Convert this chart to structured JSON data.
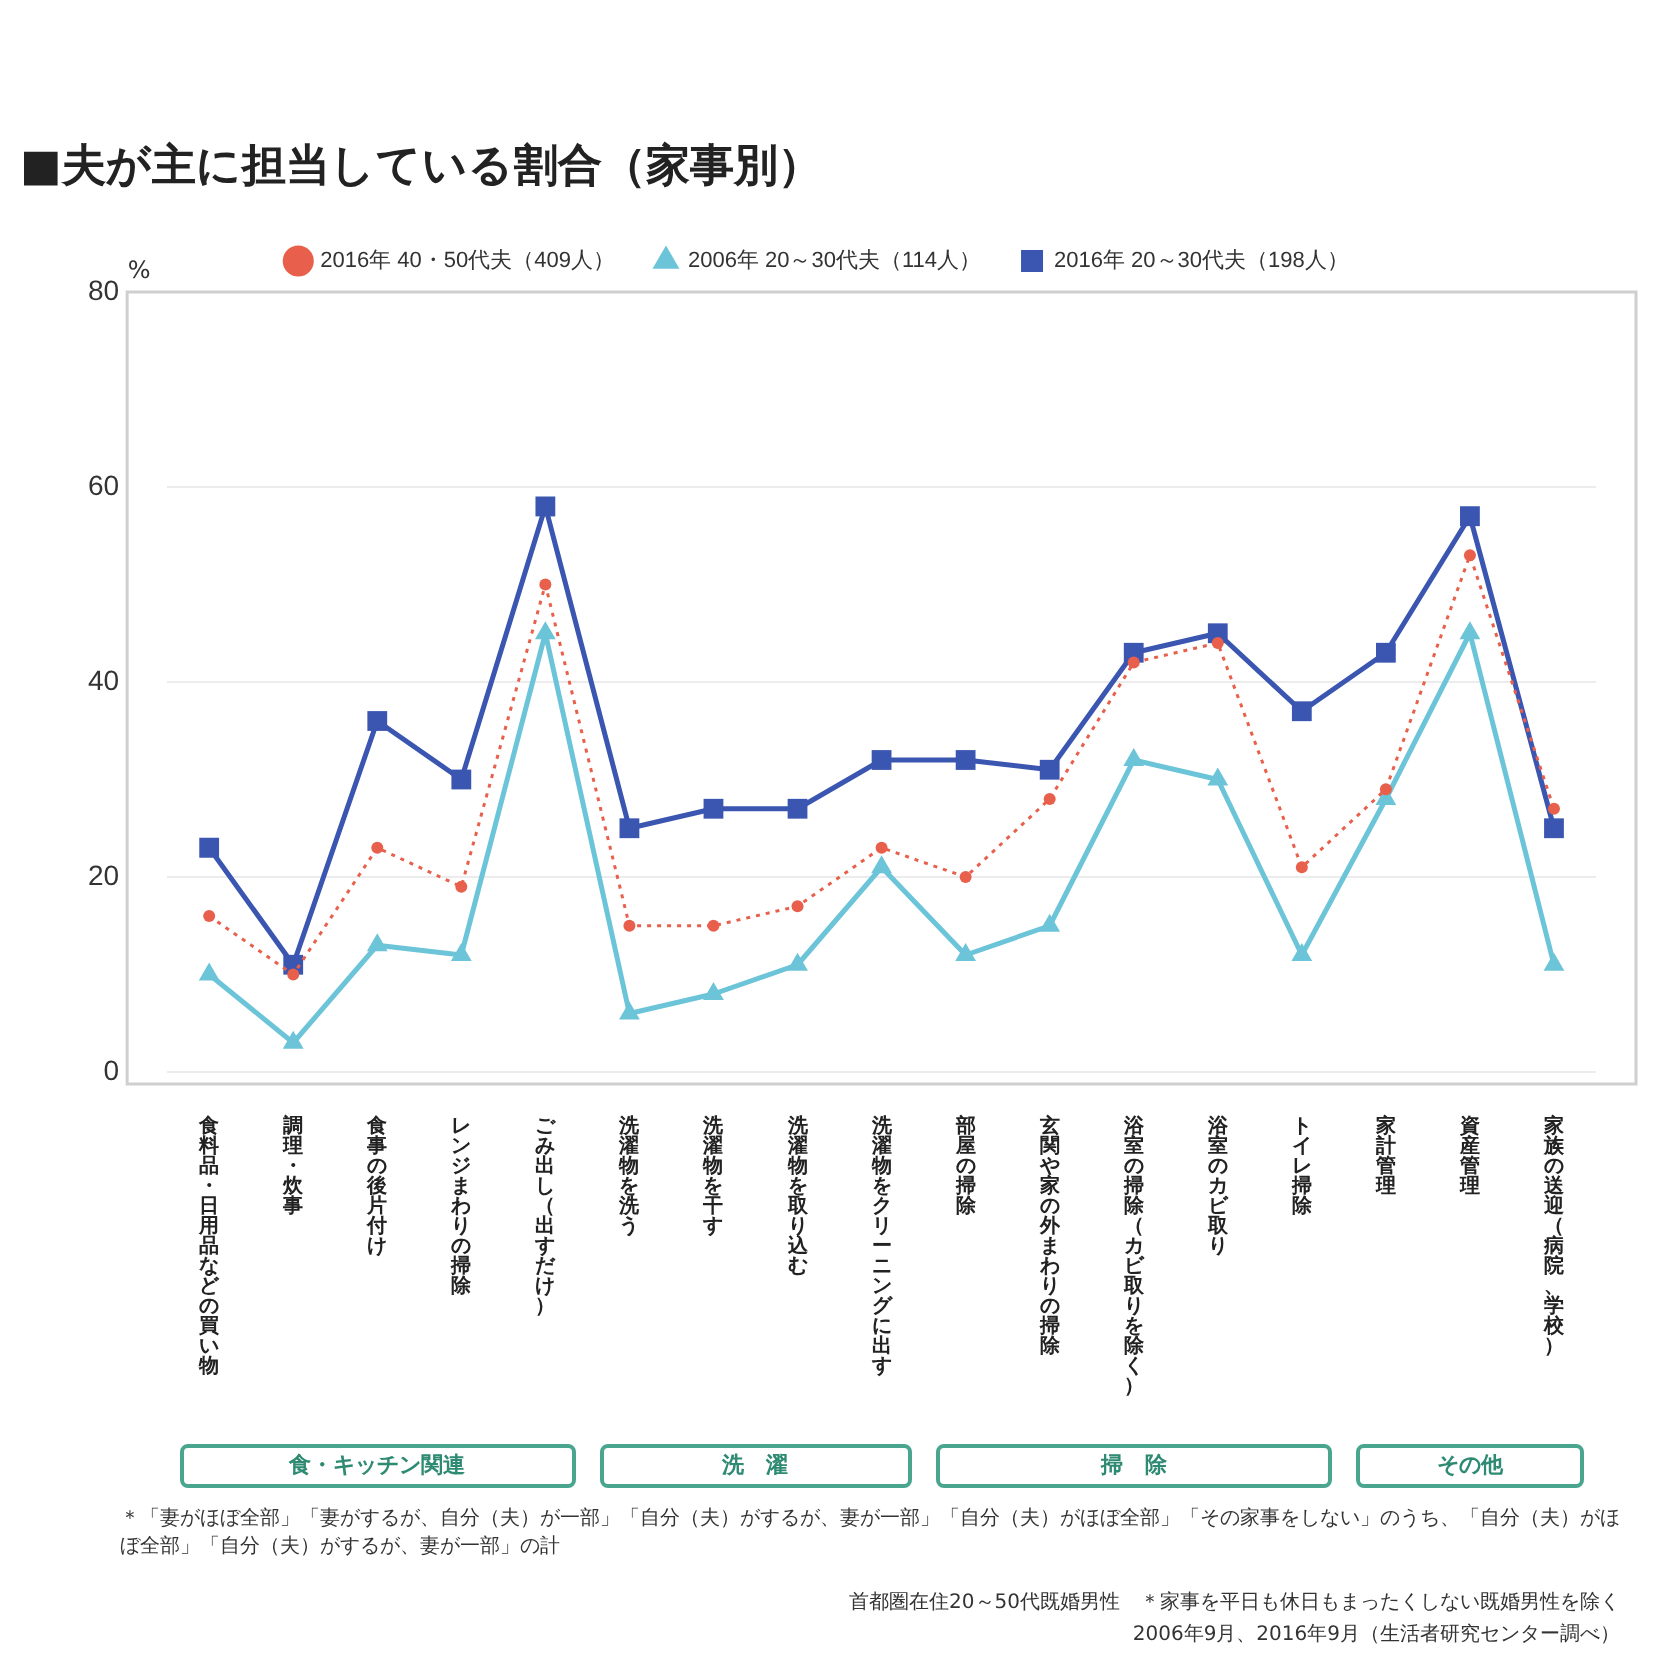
{
  "chart_data": {
    "type": "line",
    "title": "■夫が主に担当している割合（家事別）",
    "ylabel": "%",
    "categories": [
      "食料品・日用品などの買い物",
      "調理・炊事",
      "食事の後片付け",
      "レンジまわりの掃除",
      "ごみ出し（出すだけ）",
      "洗濯物を洗う",
      "洗濯物を干す",
      "洗濯物を取り込む",
      "洗濯物をクリーニングに出す",
      "部屋の掃除",
      "玄関や家の外まわりの掃除",
      "浴室の掃除（カビ取りを除く）",
      "浴室のカビ取り",
      "トイレ掃除",
      "家計管理",
      "資産管理",
      "家族の送迎（病院、学校）"
    ],
    "series": [
      {
        "name": "2006年 20～30代夫（114人）",
        "color": "#6cc4d8",
        "marker": "triangle",
        "line_style": "solid",
        "values": [
          10,
          3,
          13,
          12,
          45,
          6,
          8,
          11,
          21,
          12,
          15,
          32,
          30,
          12,
          28,
          45,
          11
        ]
      },
      {
        "name": "2016年 40・50代夫（409人）",
        "color": "#e8604c",
        "marker": "circle",
        "line_style": "dotted",
        "values": [
          16,
          10,
          23,
          19,
          50,
          15,
          15,
          17,
          23,
          20,
          28,
          42,
          44,
          21,
          29,
          53,
          27
        ]
      },
      {
        "name": "2016年 20～30代夫（198人）",
        "color": "#3a56b0",
        "marker": "square",
        "line_style": "solid",
        "values": [
          23,
          11,
          36,
          30,
          58,
          25,
          27,
          27,
          32,
          32,
          31,
          43,
          45,
          37,
          43,
          57,
          25
        ]
      }
    ],
    "ylim": [
      0,
      80
    ],
    "yticks": [
      0,
      20,
      40,
      60,
      80
    ],
    "grid": "y",
    "legend": "top",
    "annotations": [
      "食・キッチン関連",
      "洗　濯",
      "掃　除",
      "その他",
      "＊「妻がほぼ全部」「妻がするが、自分（夫）が一部」「自分（夫）がするが、妻が一部」「自分（夫）がほぼ全部」「その家事をしない」のうち、「自分（夫）がほぼ全部」「自分（夫）がするが、妻が一部」の計",
      "首都圏在住20～50代既婚男性　＊家事を平日も休日もまったくしない既婚男性を除く",
      "2006年9月、2016年9月（生活者研究センター調べ）"
    ]
  }
}
